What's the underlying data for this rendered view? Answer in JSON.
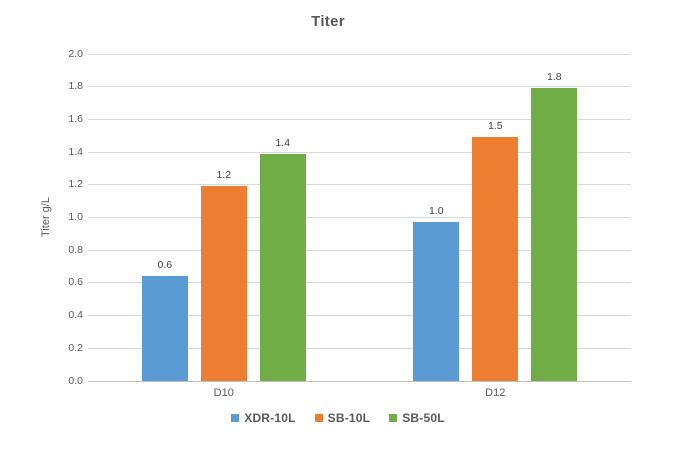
{
  "chart_data": {
    "type": "bar",
    "title": "Titer",
    "ylabel": "Titer g/L",
    "xlabel": "",
    "categories": [
      "D10",
      "D12"
    ],
    "series": [
      {
        "name": "XDR-10L",
        "color": "#5B9BD5",
        "values": [
          0.6,
          1.0
        ],
        "labels": [
          "0.6",
          "1.0"
        ],
        "bar_heights_est": [
          0.64,
          0.97
        ]
      },
      {
        "name": "SB-10L",
        "color": "#ED7D31",
        "values": [
          1.2,
          1.5
        ],
        "labels": [
          "1.2",
          "1.5"
        ],
        "bar_heights_est": [
          1.19,
          1.49
        ]
      },
      {
        "name": "SB-50L",
        "color": "#70AD47",
        "values": [
          1.4,
          1.8
        ],
        "labels": [
          "1.4",
          "1.8"
        ],
        "bar_heights_est": [
          1.39,
          1.79
        ]
      }
    ],
    "ylim": [
      0,
      2.0
    ],
    "yticks": [
      "0.0",
      "0.2",
      "0.4",
      "0.6",
      "0.8",
      "1.0",
      "1.2",
      "1.4",
      "1.6",
      "1.8",
      "2.0"
    ],
    "grid": true,
    "legend_position": "bottom",
    "colors": {
      "gridline": "#D9D9D9",
      "axis_line": "#BFBFBF",
      "title_text": "#595959",
      "tick_text": "#595959",
      "data_label_text": "#404040",
      "background": "#FFFFFF"
    }
  }
}
